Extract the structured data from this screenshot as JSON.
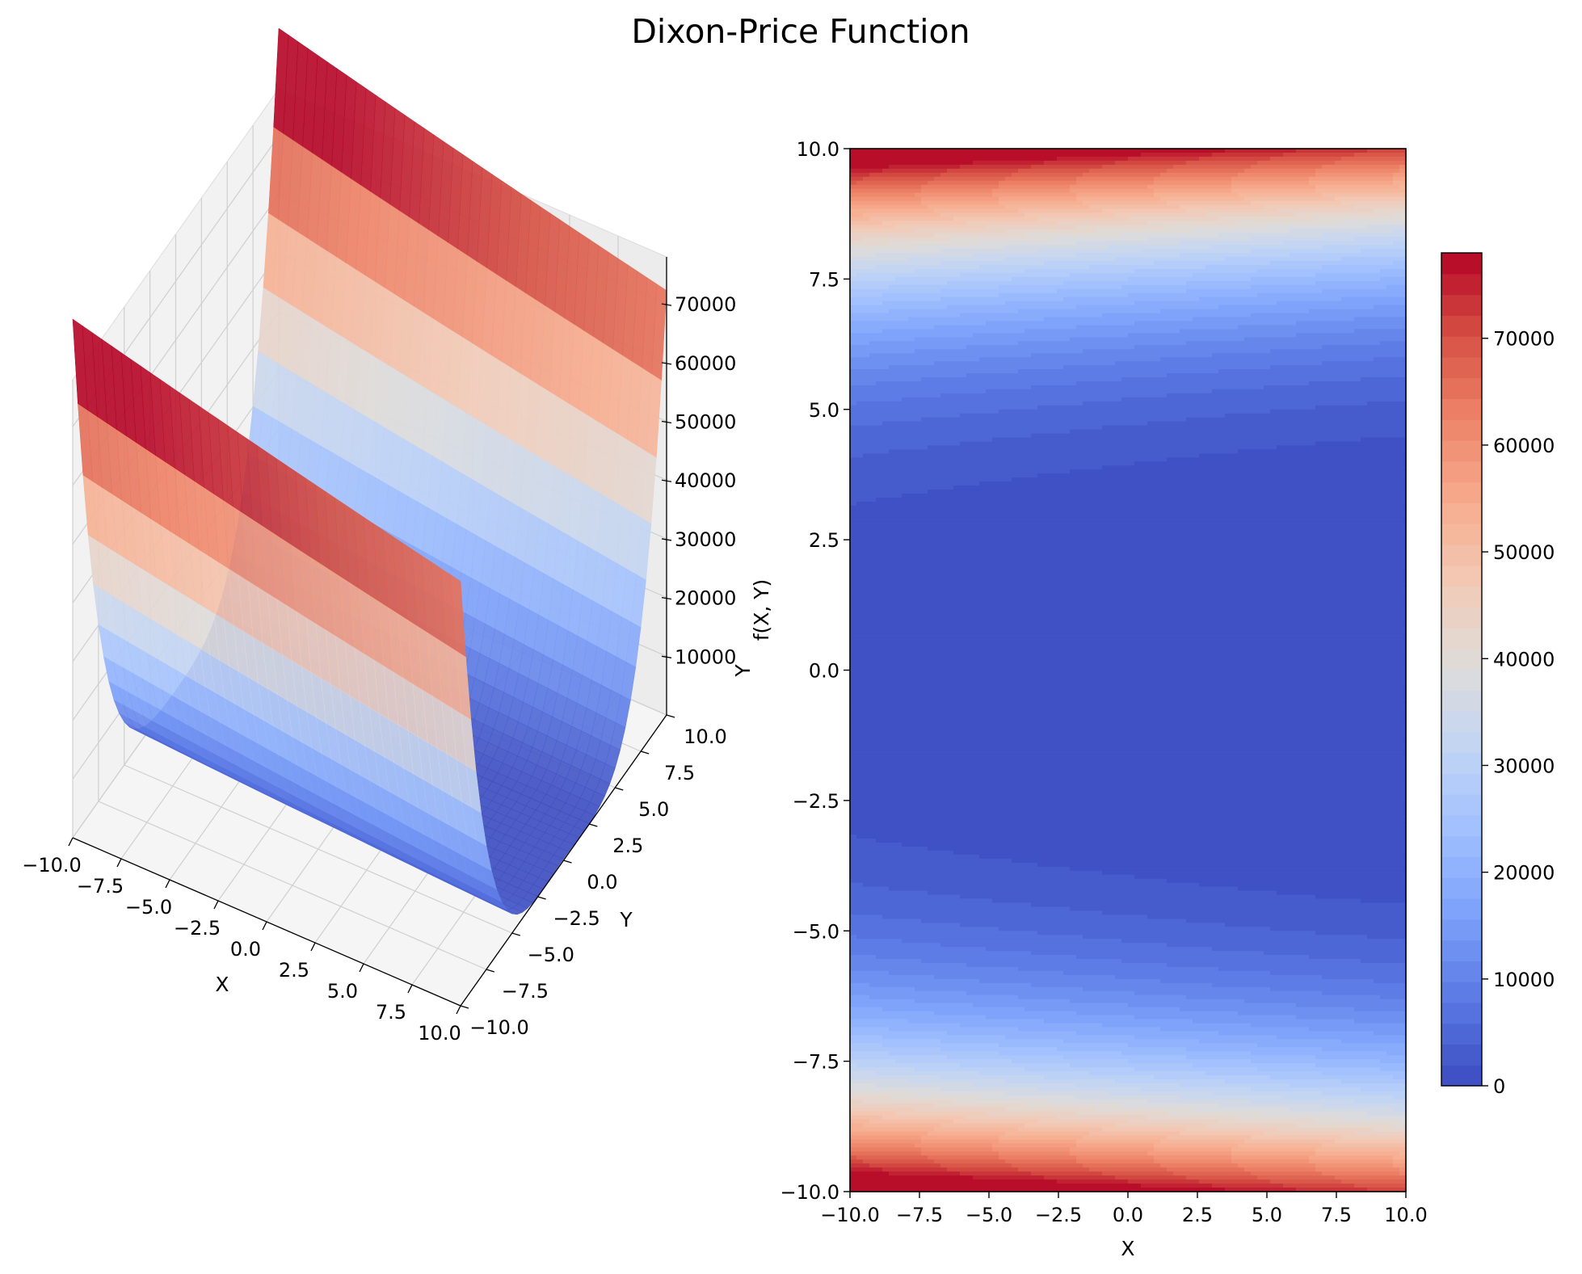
{
  "figure": {
    "title": "Dixon-Price Function"
  },
  "colormap": {
    "name": "coolwarm",
    "stops": [
      "#3b4cc0",
      "#5977e3",
      "#7b9ff9",
      "#9ebeff",
      "#c0d4f5",
      "#dddcdc",
      "#f2cbb7",
      "#f7ac8e",
      "#ee8468",
      "#d65244",
      "#b40426"
    ]
  },
  "chart_data": [
    {
      "type": "surface3d",
      "function": "Dixon-Price",
      "x_range": [
        -10,
        10
      ],
      "y_range": [
        -10,
        10
      ],
      "z_range": [
        0,
        78000
      ],
      "xlabel": "X",
      "ylabel": "Y",
      "zlabel": "f(X, Y)",
      "overlap_label": "Y",
      "x_ticks": [
        "−10.0",
        "−7.5",
        "−5.0",
        "−2.5",
        "0.0",
        "2.5",
        "5.0",
        "7.5",
        "10.0"
      ],
      "y_ticks": [
        "−10.0",
        "−7.5",
        "−5.0",
        "−2.5",
        "0.0",
        "2.5",
        "5.0",
        "7.5",
        "10.0"
      ],
      "z_ticks": [
        "10000",
        "20000",
        "30000",
        "40000",
        "50000",
        "60000",
        "70000"
      ],
      "grid": true
    },
    {
      "type": "heatmap",
      "subtype": "filled-contour",
      "function": "Dixon-Price",
      "x_range": [
        -10,
        10
      ],
      "y_range": [
        -10,
        10
      ],
      "xlabel": "X",
      "x_ticks": [
        "−10.0",
        "−7.5",
        "−5.0",
        "−2.5",
        "0.0",
        "2.5",
        "5.0",
        "7.5",
        "10.0"
      ],
      "y_ticks": [
        "−10.0",
        "−7.5",
        "−5.0",
        "−2.5",
        "0.0",
        "2.5",
        "5.0",
        "7.5",
        "10.0"
      ],
      "levels": 40,
      "vmin": 0,
      "vmax": 78000,
      "colorbar_ticks": [
        "0",
        "10000",
        "20000",
        "30000",
        "40000",
        "50000",
        "60000",
        "70000"
      ],
      "colorbar_placement": "right"
    }
  ]
}
